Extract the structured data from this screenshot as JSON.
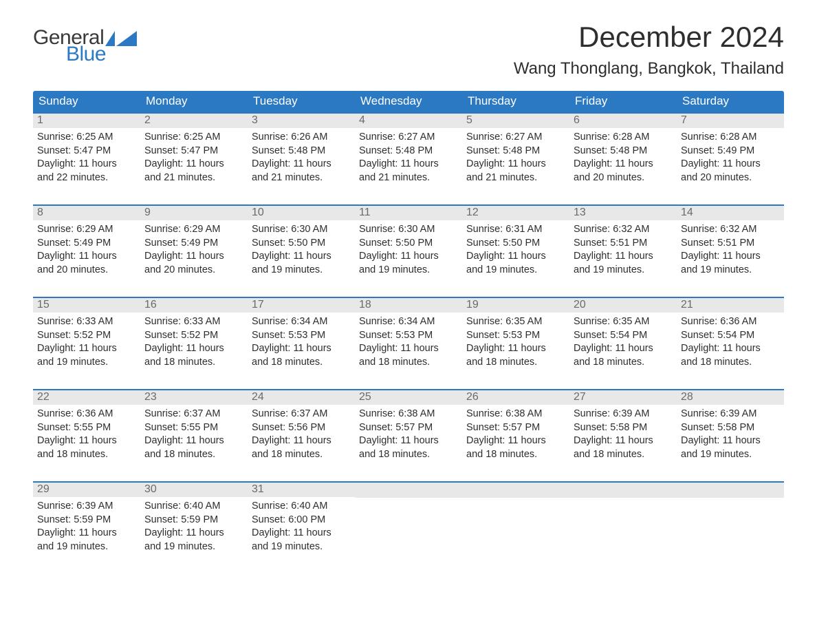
{
  "logo": {
    "text_general": "General",
    "text_blue": "Blue",
    "flag_color": "#2b79c2"
  },
  "title": "December 2024",
  "location": "Wang Thonglang, Bangkok, Thailand",
  "colors": {
    "header_bg": "#2b79c2",
    "header_text": "#ffffff",
    "daynum_bg": "#e8e8e8",
    "daynum_text": "#6a6a6a",
    "body_text": "#2e2e2e",
    "row_border": "#2b79c2"
  },
  "day_headers": [
    "Sunday",
    "Monday",
    "Tuesday",
    "Wednesday",
    "Thursday",
    "Friday",
    "Saturday"
  ],
  "weeks": [
    [
      {
        "n": "1",
        "sunrise": "6:25 AM",
        "sunset": "5:47 PM",
        "dh": "11",
        "dm": "22"
      },
      {
        "n": "2",
        "sunrise": "6:25 AM",
        "sunset": "5:47 PM",
        "dh": "11",
        "dm": "21"
      },
      {
        "n": "3",
        "sunrise": "6:26 AM",
        "sunset": "5:48 PM",
        "dh": "11",
        "dm": "21"
      },
      {
        "n": "4",
        "sunrise": "6:27 AM",
        "sunset": "5:48 PM",
        "dh": "11",
        "dm": "21"
      },
      {
        "n": "5",
        "sunrise": "6:27 AM",
        "sunset": "5:48 PM",
        "dh": "11",
        "dm": "21"
      },
      {
        "n": "6",
        "sunrise": "6:28 AM",
        "sunset": "5:48 PM",
        "dh": "11",
        "dm": "20"
      },
      {
        "n": "7",
        "sunrise": "6:28 AM",
        "sunset": "5:49 PM",
        "dh": "11",
        "dm": "20"
      }
    ],
    [
      {
        "n": "8",
        "sunrise": "6:29 AM",
        "sunset": "5:49 PM",
        "dh": "11",
        "dm": "20"
      },
      {
        "n": "9",
        "sunrise": "6:29 AM",
        "sunset": "5:49 PM",
        "dh": "11",
        "dm": "20"
      },
      {
        "n": "10",
        "sunrise": "6:30 AM",
        "sunset": "5:50 PM",
        "dh": "11",
        "dm": "19"
      },
      {
        "n": "11",
        "sunrise": "6:30 AM",
        "sunset": "5:50 PM",
        "dh": "11",
        "dm": "19"
      },
      {
        "n": "12",
        "sunrise": "6:31 AM",
        "sunset": "5:50 PM",
        "dh": "11",
        "dm": "19"
      },
      {
        "n": "13",
        "sunrise": "6:32 AM",
        "sunset": "5:51 PM",
        "dh": "11",
        "dm": "19"
      },
      {
        "n": "14",
        "sunrise": "6:32 AM",
        "sunset": "5:51 PM",
        "dh": "11",
        "dm": "19"
      }
    ],
    [
      {
        "n": "15",
        "sunrise": "6:33 AM",
        "sunset": "5:52 PM",
        "dh": "11",
        "dm": "19"
      },
      {
        "n": "16",
        "sunrise": "6:33 AM",
        "sunset": "5:52 PM",
        "dh": "11",
        "dm": "18"
      },
      {
        "n": "17",
        "sunrise": "6:34 AM",
        "sunset": "5:53 PM",
        "dh": "11",
        "dm": "18"
      },
      {
        "n": "18",
        "sunrise": "6:34 AM",
        "sunset": "5:53 PM",
        "dh": "11",
        "dm": "18"
      },
      {
        "n": "19",
        "sunrise": "6:35 AM",
        "sunset": "5:53 PM",
        "dh": "11",
        "dm": "18"
      },
      {
        "n": "20",
        "sunrise": "6:35 AM",
        "sunset": "5:54 PM",
        "dh": "11",
        "dm": "18"
      },
      {
        "n": "21",
        "sunrise": "6:36 AM",
        "sunset": "5:54 PM",
        "dh": "11",
        "dm": "18"
      }
    ],
    [
      {
        "n": "22",
        "sunrise": "6:36 AM",
        "sunset": "5:55 PM",
        "dh": "11",
        "dm": "18"
      },
      {
        "n": "23",
        "sunrise": "6:37 AM",
        "sunset": "5:55 PM",
        "dh": "11",
        "dm": "18"
      },
      {
        "n": "24",
        "sunrise": "6:37 AM",
        "sunset": "5:56 PM",
        "dh": "11",
        "dm": "18"
      },
      {
        "n": "25",
        "sunrise": "6:38 AM",
        "sunset": "5:57 PM",
        "dh": "11",
        "dm": "18"
      },
      {
        "n": "26",
        "sunrise": "6:38 AM",
        "sunset": "5:57 PM",
        "dh": "11",
        "dm": "18"
      },
      {
        "n": "27",
        "sunrise": "6:39 AM",
        "sunset": "5:58 PM",
        "dh": "11",
        "dm": "18"
      },
      {
        "n": "28",
        "sunrise": "6:39 AM",
        "sunset": "5:58 PM",
        "dh": "11",
        "dm": "19"
      }
    ],
    [
      {
        "n": "29",
        "sunrise": "6:39 AM",
        "sunset": "5:59 PM",
        "dh": "11",
        "dm": "19"
      },
      {
        "n": "30",
        "sunrise": "6:40 AM",
        "sunset": "5:59 PM",
        "dh": "11",
        "dm": "19"
      },
      {
        "n": "31",
        "sunrise": "6:40 AM",
        "sunset": "6:00 PM",
        "dh": "11",
        "dm": "19"
      },
      null,
      null,
      null,
      null
    ]
  ],
  "labels": {
    "sunrise_prefix": "Sunrise: ",
    "sunset_prefix": "Sunset: ",
    "daylight_prefix": "Daylight: ",
    "hours_word": " hours",
    "and_word": "and ",
    "minutes_word": " minutes."
  }
}
